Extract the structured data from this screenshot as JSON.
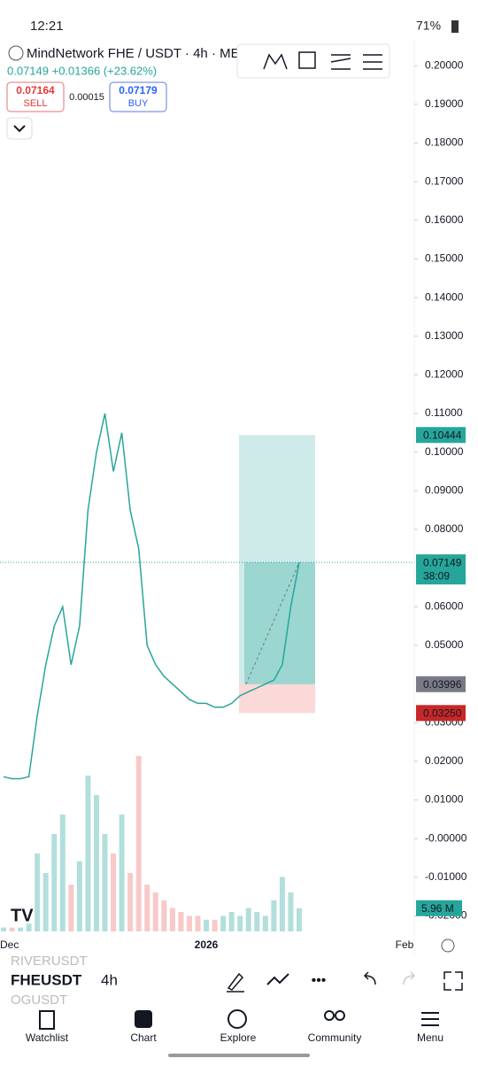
{
  "status_bar": {
    "time": "12:21",
    "battery": "71%"
  },
  "header": {
    "symbol_title": "MindNetwork FHE / USDT · 4h · ME",
    "price_change": "0.07149 +0.01366 (+23.62%)",
    "sell_price": "0.07164",
    "sell": "SELL",
    "spread": "0.00015",
    "buy_price": "0.07179",
    "buy": "BUY"
  },
  "chart_data": {
    "type": "line",
    "values": [
      0.016,
      0.0155,
      0.0155,
      0.016,
      0.032,
      0.045,
      0.055,
      0.06,
      0.045,
      0.055,
      0.085,
      0.1,
      0.11,
      0.095,
      0.105,
      0.085,
      0.075,
      0.05,
      0.045,
      0.042,
      0.04,
      0.038,
      0.036,
      0.035,
      0.035,
      0.034,
      0.034,
      0.035,
      0.037,
      0.038,
      0.039,
      0.04,
      0.041,
      0.045,
      0.06,
      0.07149
    ],
    "color": "#26a69a",
    "volume": {
      "values": [
        1,
        1,
        1,
        2,
        20,
        15,
        25,
        30,
        12,
        18,
        40,
        35,
        25,
        20,
        30,
        15,
        45,
        12,
        10,
        8,
        6,
        5,
        4,
        4,
        3,
        3,
        4,
        5,
        4,
        6,
        5,
        4,
        8,
        14,
        10,
        5.96
      ],
      "label": "5.96 M",
      "vlim": [
        0,
        50
      ]
    },
    "ylim": [
      -0.0247,
      0.2044
    ],
    "yticks": [
      {
        "value": 0.2,
        "label": "0.20000"
      },
      {
        "value": 0.19,
        "label": "0.19000"
      },
      {
        "value": 0.18,
        "label": "0.18000"
      },
      {
        "value": 0.17,
        "label": "0.17000"
      },
      {
        "value": 0.16,
        "label": "0.16000"
      },
      {
        "value": 0.15,
        "label": "0.15000"
      },
      {
        "value": 0.14,
        "label": "0.14000"
      },
      {
        "value": 0.13,
        "label": "0.13000"
      },
      {
        "value": 0.12,
        "label": "0.12000"
      },
      {
        "value": 0.11,
        "label": "0.11000"
      },
      {
        "value": 0.1,
        "label": "0.10000"
      },
      {
        "value": 0.09,
        "label": "0.09000"
      },
      {
        "value": 0.08,
        "label": "0.08000"
      },
      {
        "value": 0.06,
        "label": "0.06000"
      },
      {
        "value": 0.05,
        "label": "0.05000"
      },
      {
        "value": 0.03,
        "label": "0.03000"
      },
      {
        "value": 0.02,
        "label": "0.02000"
      },
      {
        "value": 0.01,
        "label": "0.01000"
      },
      {
        "value": 0,
        "label": "-0.00000"
      },
      {
        "value": -0.01,
        "label": "-0.01000"
      },
      {
        "value": -0.02,
        "label": "-0.02000"
      }
    ],
    "x_labels": [
      "Dec",
      "2026",
      "Feb"
    ],
    "last_price": 0.07149,
    "countdown": "38:09",
    "position": {
      "target": 0.10444,
      "entry": 0.03996,
      "stop": {
        "value": 0.0325,
        "label": "0.03250"
      }
    }
  },
  "bottom_bar": {
    "prev_symbol": "RIVERUSDT",
    "symbol": "FHEUSDT",
    "interval": "4h",
    "next_symbol": "OGUSDT"
  },
  "nav": [
    "Watchlist",
    "Chart",
    "Explore",
    "Community",
    "Menu"
  ]
}
